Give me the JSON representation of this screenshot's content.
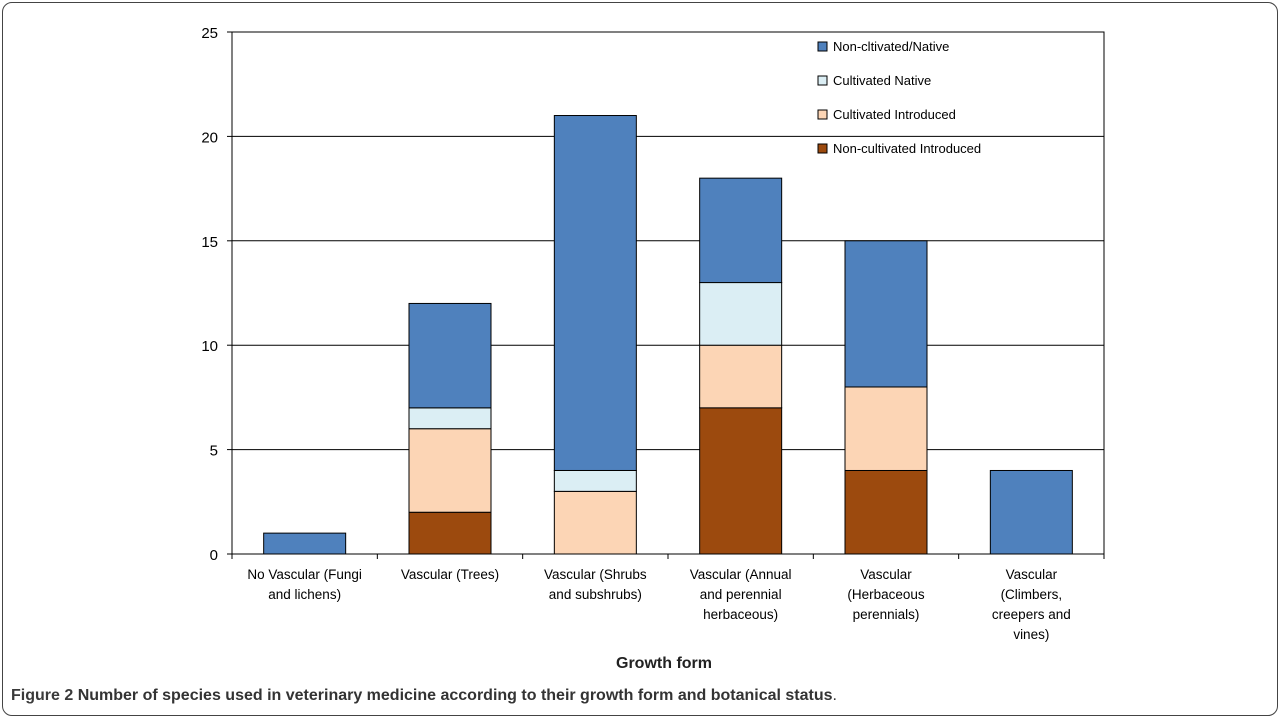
{
  "chart_data": {
    "type": "bar",
    "stacked": true,
    "xlabel": "Growth form",
    "ylabel": "",
    "ylim": [
      0,
      25
    ],
    "yticks": [
      0,
      5,
      10,
      15,
      20,
      25
    ],
    "grid": true,
    "legend_position": "top-right",
    "categories": [
      [
        "No Vascular (Fungi",
        "and lichens)"
      ],
      [
        "Vascular (Trees)"
      ],
      [
        "Vascular (Shrubs",
        "and subshrubs)"
      ],
      [
        "Vascular (Annual",
        "and perennial",
        "herbaceous)"
      ],
      [
        "Vascular",
        "(Herbaceous",
        "perennials)"
      ],
      [
        "Vascular",
        "(Climbers,",
        "creepers and",
        "vines)"
      ]
    ],
    "series": [
      {
        "name": "Non-cultivated Introduced",
        "color": "#9c4a0e",
        "values": [
          0,
          2,
          0,
          7,
          4,
          0
        ]
      },
      {
        "name": "Cultivated Introduced",
        "color": "#fcd5b5",
        "values": [
          0,
          4,
          3,
          3,
          4,
          0
        ]
      },
      {
        "name": "Cultivated Native",
        "color": "#dbeef4",
        "values": [
          0,
          1,
          1,
          3,
          0,
          0
        ]
      },
      {
        "name": "Non-cultivated/Native",
        "color": "#4f81bd",
        "values": [
          1,
          5,
          17,
          5,
          7,
          4
        ]
      }
    ],
    "legend_entries": [
      "Non-cltivated/Native",
      "Cultivated Native",
      "Cultivated Introduced",
      "Non-cultivated Introduced"
    ]
  },
  "caption": {
    "label": "Figure 2",
    "text": "Number of species used in veterinary medicine according to their growth form and botanical status",
    "end": "."
  }
}
